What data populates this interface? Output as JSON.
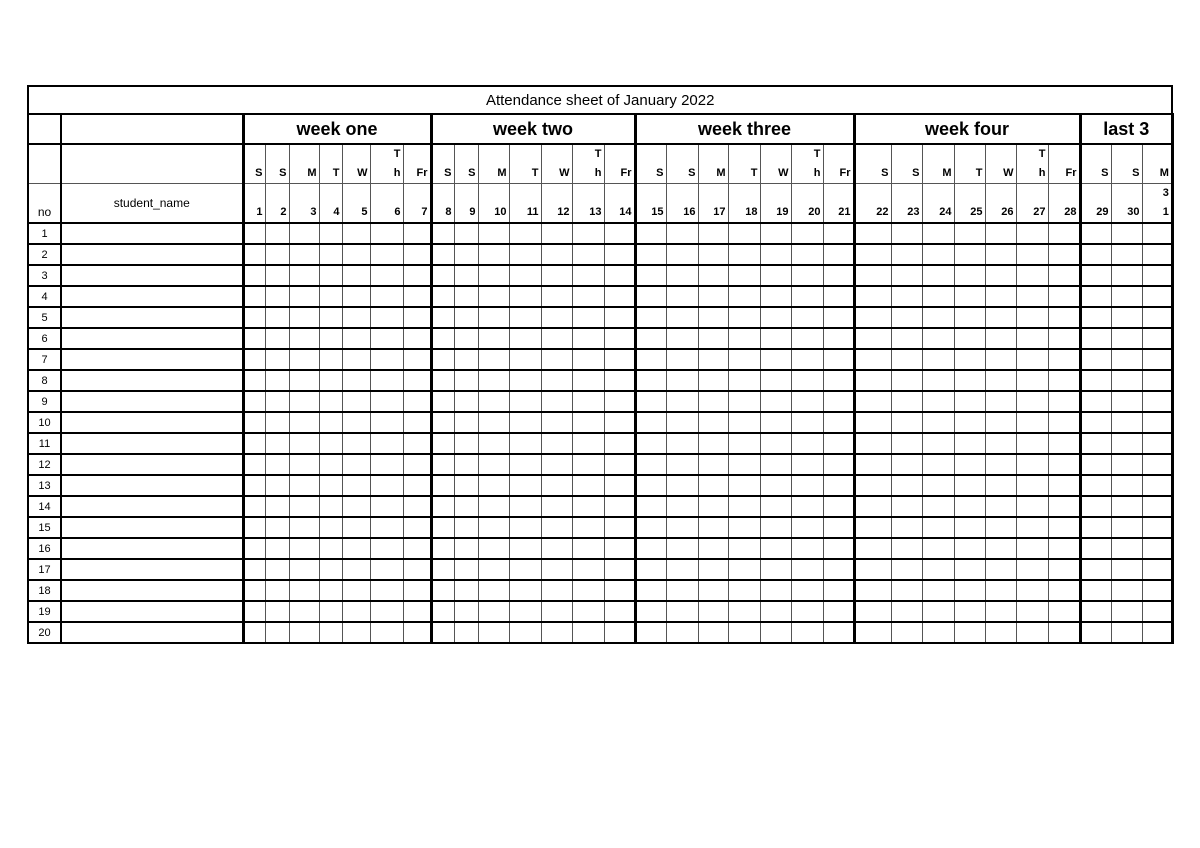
{
  "title": "Attendance  sheet of January 2022",
  "header": {
    "no": "no",
    "student_name": "student_name"
  },
  "weeks": [
    {
      "label": "week one",
      "days": [
        "S",
        "S",
        "M",
        "T",
        "W",
        "Th",
        "Fr"
      ],
      "dates": [
        "1",
        "2",
        "3",
        "4",
        "5",
        "6",
        "7"
      ]
    },
    {
      "label": "week two",
      "days": [
        "S",
        "S",
        "M",
        "T",
        "W",
        "Th",
        "Fr"
      ],
      "dates": [
        "8",
        "9",
        "10",
        "11",
        "12",
        "13",
        "14"
      ]
    },
    {
      "label": "week three",
      "days": [
        "S",
        "S",
        "M",
        "T",
        "W",
        "Th",
        "Fr"
      ],
      "dates": [
        "15",
        "16",
        "17",
        "18",
        "19",
        "20",
        "21"
      ]
    },
    {
      "label": "week four",
      "days": [
        "S",
        "S",
        "M",
        "T",
        "W",
        "Th",
        "Fr"
      ],
      "dates": [
        "22",
        "23",
        "24",
        "25",
        "26",
        "27",
        "28"
      ]
    },
    {
      "label": "last 3",
      "days": [
        "S",
        "S",
        "M"
      ],
      "dates": [
        "29",
        "30",
        "31"
      ]
    }
  ],
  "rows": [
    "1",
    "2",
    "3",
    "4",
    "5",
    "6",
    "7",
    "8",
    "9",
    "10",
    "11",
    "12",
    "13",
    "14",
    "15",
    "16",
    "17",
    "18",
    "19",
    "20"
  ]
}
